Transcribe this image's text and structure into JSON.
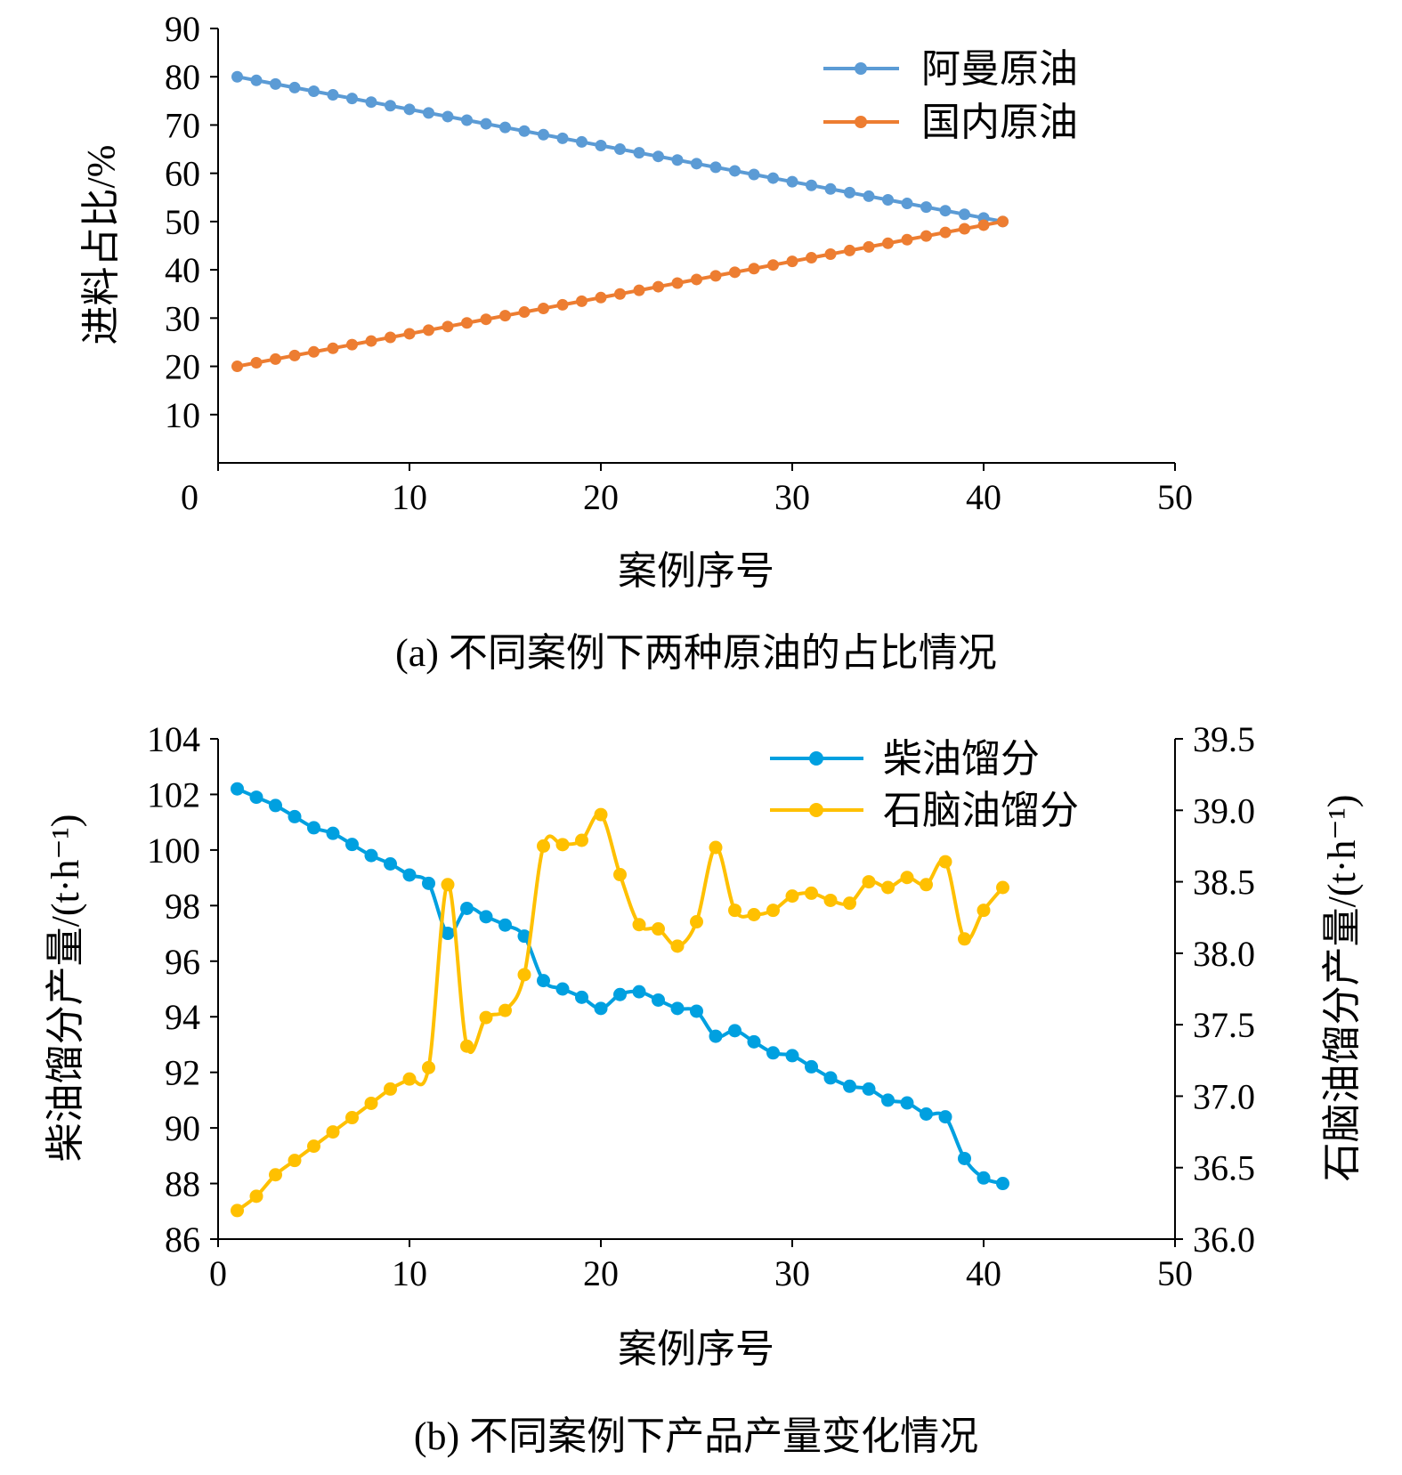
{
  "chart_data": [
    {
      "type": "line",
      "caption": "(a) 不同案例下两种原油的占比情况",
      "xlabel": "案例序号",
      "ylabel": "进料占比/%",
      "xlim": [
        0,
        50
      ],
      "ylim": [
        0,
        90
      ],
      "xticks": [
        0,
        10,
        20,
        30,
        40,
        50
      ],
      "yticks": [
        10,
        20,
        30,
        40,
        50,
        60,
        70,
        80,
        90
      ],
      "grid": false,
      "legend_position": "top-right",
      "x": [
        1,
        2,
        3,
        4,
        5,
        6,
        7,
        8,
        9,
        10,
        11,
        12,
        13,
        14,
        15,
        16,
        17,
        18,
        19,
        20,
        21,
        22,
        23,
        24,
        25,
        26,
        27,
        28,
        29,
        30,
        31,
        32,
        33,
        34,
        35,
        36,
        37,
        38,
        39,
        40,
        41
      ],
      "series": [
        {
          "name": "阿曼原油",
          "color": "#5b9bd5",
          "values": [
            80,
            79.25,
            78.5,
            77.75,
            77,
            76.25,
            75.5,
            74.75,
            74,
            73.25,
            72.5,
            71.75,
            71,
            70.25,
            69.5,
            68.75,
            68,
            67.25,
            66.5,
            65.75,
            65,
            64.25,
            63.5,
            62.75,
            62,
            61.25,
            60.5,
            59.75,
            59,
            58.25,
            57.5,
            56.75,
            56,
            55.25,
            54.5,
            53.75,
            53,
            52.25,
            51.5,
            50.75,
            50
          ]
        },
        {
          "name": "国内原油",
          "color": "#ed7d31",
          "values": [
            20,
            20.75,
            21.5,
            22.25,
            23,
            23.75,
            24.5,
            25.25,
            26,
            26.75,
            27.5,
            28.25,
            29,
            29.75,
            30.5,
            31.25,
            32,
            32.75,
            33.5,
            34.25,
            35,
            35.75,
            36.5,
            37.25,
            38,
            38.75,
            39.5,
            40.25,
            41,
            41.75,
            42.5,
            43.25,
            44,
            44.75,
            45.5,
            46.25,
            47,
            47.75,
            48.5,
            49.25,
            50
          ]
        }
      ]
    },
    {
      "type": "line",
      "caption": "(b) 不同案例下产品产量变化情况",
      "xlabel": "案例序号",
      "ylabel_left": "柴油馏分产量/(t·h⁻¹)",
      "ylabel_right": "石脑油馏分产量/(t·h⁻¹)",
      "xlim": [
        0,
        50
      ],
      "ylim_left": [
        86,
        104
      ],
      "ylim_right": [
        36.0,
        39.5
      ],
      "xticks": [
        0,
        10,
        20,
        30,
        40,
        50
      ],
      "yticks_left": [
        86,
        88,
        90,
        92,
        94,
        96,
        98,
        100,
        102,
        104
      ],
      "yticks_right": [
        "36.0",
        "36.5",
        "37.0",
        "37.5",
        "38.0",
        "38.5",
        "39.0",
        "39.5"
      ],
      "grid": false,
      "legend_position": "top-right",
      "x": [
        1,
        2,
        3,
        4,
        5,
        6,
        7,
        8,
        9,
        10,
        11,
        12,
        13,
        14,
        15,
        16,
        17,
        18,
        19,
        20,
        21,
        22,
        23,
        24,
        25,
        26,
        27,
        28,
        29,
        30,
        31,
        32,
        33,
        34,
        35,
        36,
        37,
        38,
        39,
        40,
        41
      ],
      "series": [
        {
          "name": "柴油馏分",
          "axis": "left",
          "color": "#00a0e0",
          "values": [
            102.2,
            101.9,
            101.6,
            101.2,
            100.8,
            100.6,
            100.2,
            99.8,
            99.5,
            99.1,
            98.8,
            97.0,
            97.9,
            97.6,
            97.3,
            96.9,
            95.3,
            95.0,
            94.7,
            94.3,
            94.8,
            94.9,
            94.6,
            94.3,
            94.2,
            93.3,
            93.5,
            93.1,
            92.7,
            92.6,
            92.2,
            91.8,
            91.5,
            91.4,
            91.0,
            90.9,
            90.5,
            90.4,
            88.9,
            88.2,
            88.0
          ]
        },
        {
          "name": "石脑油馏分",
          "axis": "right",
          "color": "#ffc000",
          "values": [
            36.2,
            36.3,
            36.45,
            36.55,
            36.65,
            36.75,
            36.85,
            36.95,
            37.05,
            37.12,
            37.2,
            38.48,
            37.35,
            37.55,
            37.6,
            37.85,
            38.75,
            38.76,
            38.79,
            38.97,
            38.55,
            38.2,
            38.17,
            38.05,
            38.22,
            38.74,
            38.3,
            38.27,
            38.3,
            38.4,
            38.42,
            38.37,
            38.35,
            38.5,
            38.46,
            38.53,
            38.48,
            38.64,
            38.1,
            38.3,
            38.46
          ]
        }
      ]
    }
  ]
}
